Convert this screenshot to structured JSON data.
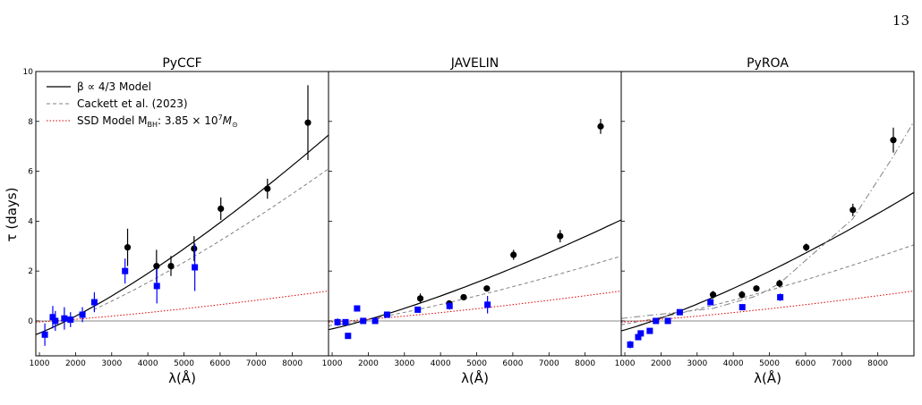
{
  "page_number": "13",
  "shared": {
    "ylabel": "τ (days)",
    "xlabel": "λ(Å)",
    "ylim": [
      -1.4,
      10
    ],
    "xlim": [
      900,
      9000
    ],
    "yticks": [
      0,
      2,
      4,
      6,
      8,
      10
    ],
    "xticks": [
      1000,
      2000,
      3000,
      4000,
      5000,
      6000,
      7000,
      8000
    ]
  },
  "legend": {
    "placement": "top-left",
    "entries": [
      {
        "key": "model",
        "label": "β ∝ 4/3 Model",
        "color": "#000000",
        "dash": ""
      },
      {
        "key": "cackett",
        "label": "Cackett et al. (2023)",
        "color": "#808080",
        "dash": "4,3"
      },
      {
        "key": "ssd",
        "label": "SSD Model",
        "mbh_prefix": "M",
        "mbh_sub": "BH",
        "mbh_value": ": 3.85 × 10",
        "mbh_exp": "7",
        "msun": "M",
        "msun_sub": "⊙",
        "color": "#e00000",
        "dash": "1.5,2"
      }
    ]
  },
  "chart_data": [
    {
      "type": "scatter",
      "title": "PyCCF",
      "series": [
        {
          "marker": "circle",
          "color": "#000000",
          "x": [
            3440,
            4240,
            4640,
            5280,
            6020,
            7310,
            8430
          ],
          "y": [
            2.95,
            2.2,
            2.2,
            2.9,
            4.5,
            5.3,
            7.95
          ],
          "err": [
            0.75,
            0.65,
            0.4,
            0.5,
            0.45,
            0.4,
            1.5
          ]
        },
        {
          "marker": "square",
          "color": "#0000ff",
          "x": [
            1150,
            1370,
            1440,
            1690,
            1860,
            2190,
            2520,
            3370,
            4250,
            5300
          ],
          "y": [
            -0.55,
            0.15,
            0.0,
            0.1,
            0.05,
            0.25,
            0.75,
            2.0,
            1.4,
            2.15
          ],
          "err": [
            0.45,
            0.45,
            0.4,
            0.45,
            0.3,
            0.3,
            0.4,
            0.5,
            0.7,
            0.95
          ]
        }
      ],
      "curves": {
        "model": {
          "x": [
            900,
            9000
          ],
          "y0": -0.55,
          "y1": 7.45
        },
        "cackett": {
          "x": [
            2500,
            9000
          ],
          "y0": 0.45,
          "y1": 6.1
        },
        "ssd": {
          "x": [
            900,
            9000
          ],
          "y0": -0.05,
          "y1": 1.2
        }
      }
    },
    {
      "type": "scatter",
      "title": "JAVELIN",
      "series": [
        {
          "marker": "circle",
          "color": "#000000",
          "x": [
            3440,
            4240,
            4640,
            5280,
            6020,
            7310,
            8430
          ],
          "y": [
            0.9,
            0.7,
            0.95,
            1.3,
            2.65,
            3.4,
            7.8
          ],
          "err": [
            0.2,
            0.1,
            0.1,
            0.1,
            0.2,
            0.25,
            0.3
          ]
        },
        {
          "marker": "square",
          "color": "#0000ff",
          "x": [
            1150,
            1370,
            1440,
            1690,
            1860,
            2190,
            2520,
            3370,
            4250,
            5300
          ],
          "y": [
            -0.05,
            -0.05,
            -0.6,
            0.5,
            0.0,
            0.0,
            0.25,
            0.45,
            0.6,
            0.65
          ],
          "err": [
            0.15,
            0.1,
            0.1,
            0.1,
            0.05,
            0.05,
            0.05,
            0.1,
            0.15,
            0.35
          ]
        }
      ],
      "curves": {
        "model": {
          "x": [
            900,
            9000
          ],
          "y0": -0.35,
          "y1": 4.05
        },
        "cackett": {
          "x": [
            900,
            9000
          ],
          "y0": -0.2,
          "y1": 2.6
        },
        "ssd": {
          "x": [
            900,
            9000
          ],
          "y0": -0.05,
          "y1": 1.2
        }
      }
    },
    {
      "type": "scatter",
      "title": "PyROA",
      "series": [
        {
          "marker": "circle",
          "color": "#000000",
          "x": [
            3440,
            4240,
            4640,
            5280,
            6020,
            7310,
            8430
          ],
          "y": [
            1.05,
            1.05,
            1.3,
            1.5,
            2.95,
            4.45,
            7.25
          ],
          "err": [
            0.15,
            0.15,
            0.1,
            0.15,
            0.15,
            0.25,
            0.5
          ]
        },
        {
          "marker": "square",
          "color": "#0000ff",
          "x": [
            1150,
            1370,
            1440,
            1690,
            1860,
            2190,
            2520,
            3370,
            4250,
            5300
          ],
          "y": [
            -0.95,
            -0.65,
            -0.5,
            -0.4,
            0.0,
            0.0,
            0.35,
            0.75,
            0.55,
            0.95
          ],
          "err": [
            0.15,
            0.1,
            0.1,
            0.1,
            0.05,
            0.05,
            0.05,
            0.1,
            0.1,
            0.15
          ]
        }
      ],
      "curves": {
        "model": {
          "x": [
            900,
            9000
          ],
          "y0": -0.4,
          "y1": 5.15
        },
        "cackett": {
          "x": [
            900,
            9000
          ],
          "y0": -0.15,
          "y1": 3.05
        },
        "ssd": {
          "x": [
            900,
            9000
          ],
          "y0": -0.05,
          "y1": 1.2
        },
        "dashdot": {
          "x": [
            900,
            3440,
            4640,
            5280,
            7310,
            8430,
            9000
          ],
          "y": [
            0.1,
            0.5,
            1.0,
            1.5,
            4.1,
            6.6,
            8.0
          ]
        }
      }
    }
  ]
}
